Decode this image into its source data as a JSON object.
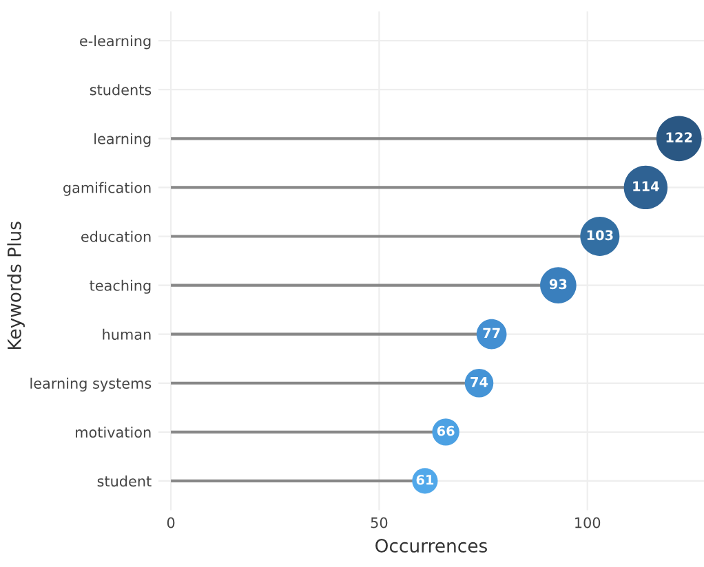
{
  "chart_data": {
    "type": "lollipop",
    "xlabel": "Occurrences",
    "ylabel": "Keywords Plus",
    "orientation": "horizontal",
    "categories": [
      "e-learning",
      "students",
      "learning",
      "gamification",
      "education",
      "teaching",
      "human",
      "learning systems",
      "motivation",
      "student"
    ],
    "values": [
      null,
      null,
      122,
      114,
      103,
      93,
      77,
      74,
      66,
      61
    ],
    "sizes": [
      null,
      null,
      1,
      0.93,
      0.75,
      0.64,
      0.44,
      0.4,
      0.36,
      0.32
    ],
    "colors": [
      "#24507a",
      "#26527d",
      "#2a5783",
      "#2f6293",
      "#336fa3",
      "#3a7fbd",
      "#438fd2",
      "#4594d6",
      "#4ca1e3",
      "#51a8ea"
    ],
    "xlim": [
      -3,
      128
    ],
    "xticks": [
      0,
      50,
      100
    ],
    "grid": true,
    "data_labels": true,
    "marker": "circle"
  }
}
